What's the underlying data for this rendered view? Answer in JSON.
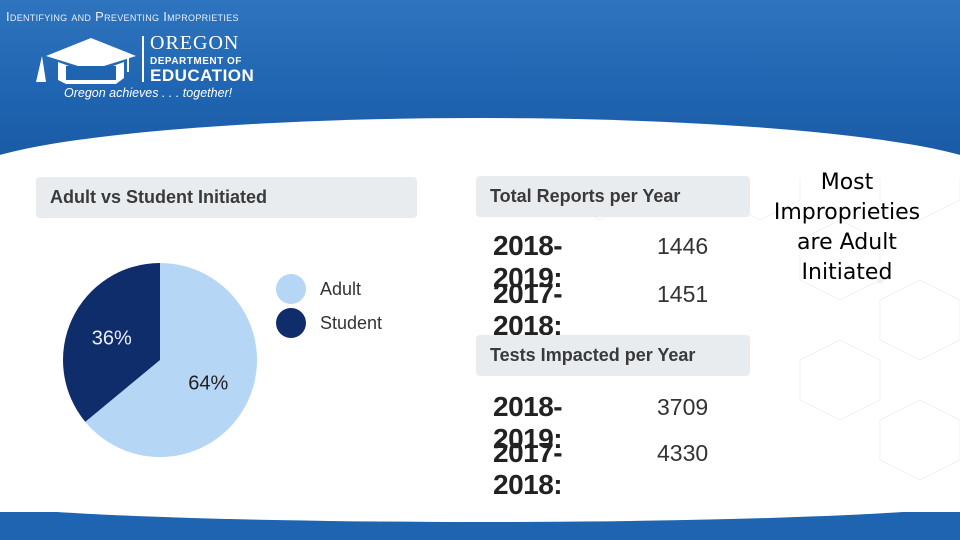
{
  "slide": {
    "title": "Identifying and Preventing Improprieties"
  },
  "logo": {
    "line1": "OREGON",
    "line2": "DEPARTMENT OF",
    "line3": "EDUCATION",
    "tagline": "Oregon achieves . . . together!"
  },
  "pie_panel": {
    "header": "Adult vs Student Initiated"
  },
  "chart_data": {
    "type": "pie",
    "categories": [
      "Adult",
      "Student"
    ],
    "values": [
      64,
      36
    ],
    "labels": [
      "64%",
      "36%"
    ],
    "colors": [
      "#b6d6f6",
      "#102d6b"
    ],
    "legend_position": "right"
  },
  "reports_panel": {
    "header": "Total Reports per Year",
    "rows": [
      {
        "year": "2018-2019:",
        "value": "1446"
      },
      {
        "year": "2017-2018:",
        "value": "1451"
      }
    ]
  },
  "tests_panel": {
    "header": "Tests Impacted per Year",
    "rows": [
      {
        "year": "2018-2019:",
        "value": "3709"
      },
      {
        "year": "2017-2018:",
        "value": "4330"
      }
    ]
  },
  "side_note": "Most Improprieties are Adult Initiated",
  "colors": {
    "header_blue": "#1f64b0",
    "panel_gray": "#e9ecef",
    "adult": "#b6d6f6",
    "student": "#102d6b"
  }
}
